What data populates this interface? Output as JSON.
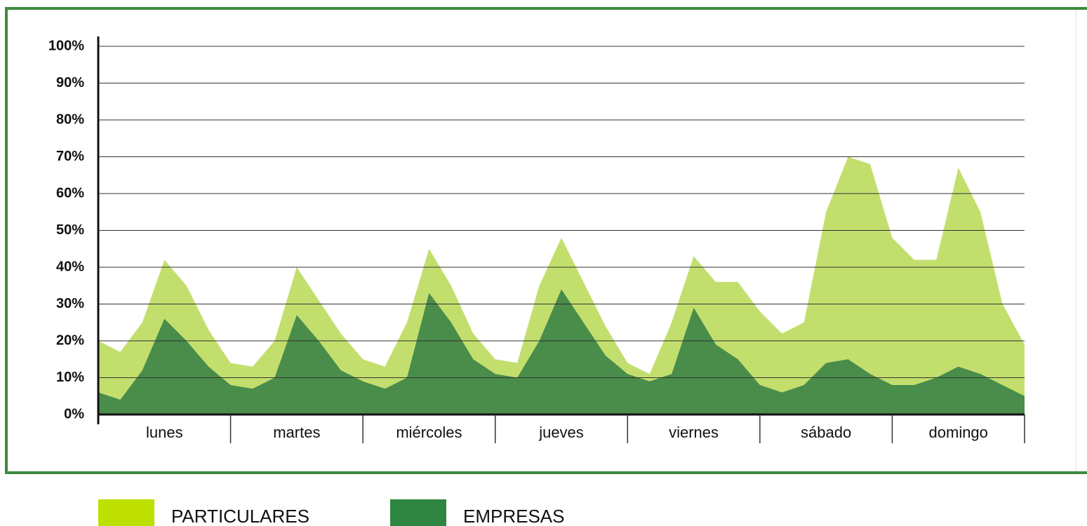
{
  "chart_data": {
    "type": "area",
    "categories": [
      null,
      null,
      null,
      "lunes",
      null,
      null,
      null,
      null,
      null,
      "martes",
      null,
      null,
      null,
      null,
      null,
      "miércoles",
      null,
      null,
      null,
      null,
      null,
      "jueves",
      null,
      null,
      null,
      null,
      null,
      "viernes",
      null,
      null,
      null,
      null,
      null,
      "sábado",
      null,
      null,
      null,
      null,
      null,
      "domingo",
      null,
      null,
      null
    ],
    "series": [
      {
        "name": "PARTICULARES",
        "color": "#c2df6e",
        "values": [
          20,
          17,
          25,
          42,
          35,
          23,
          14,
          13,
          20,
          40,
          31,
          22,
          15,
          13,
          25,
          45,
          35,
          22,
          15,
          14,
          35,
          48,
          36,
          24,
          14,
          11,
          25,
          43,
          36,
          36,
          28,
          22,
          25,
          55,
          70,
          68,
          48,
          42,
          42,
          67,
          55,
          30,
          19
        ]
      },
      {
        "name": "EMPRESAS",
        "color": "#4a8c4a",
        "values": [
          6,
          4,
          12,
          26,
          20,
          13,
          8,
          7,
          10,
          27,
          20,
          12,
          9,
          7,
          10,
          33,
          25,
          15,
          11,
          10,
          20,
          34,
          25,
          16,
          11,
          9,
          11,
          29,
          19,
          15,
          8,
          6,
          8,
          14,
          15,
          11,
          8,
          8,
          10,
          13,
          11,
          8,
          5
        ]
      }
    ],
    "ylim": [
      0,
      100
    ],
    "yticks": [
      {
        "value": 0,
        "label": "0%"
      },
      {
        "value": 10,
        "label": "10%"
      },
      {
        "value": 20,
        "label": "20%"
      },
      {
        "value": 30,
        "label": "30%"
      },
      {
        "value": 40,
        "label": "40%"
      },
      {
        "value": 50,
        "label": "50%"
      },
      {
        "value": 60,
        "label": "60%"
      },
      {
        "value": 70,
        "label": "70%"
      },
      {
        "value": 80,
        "label": "80%"
      },
      {
        "value": 90,
        "label": "90%"
      },
      {
        "value": 100,
        "label": "100%"
      }
    ],
    "grid": true
  }
}
